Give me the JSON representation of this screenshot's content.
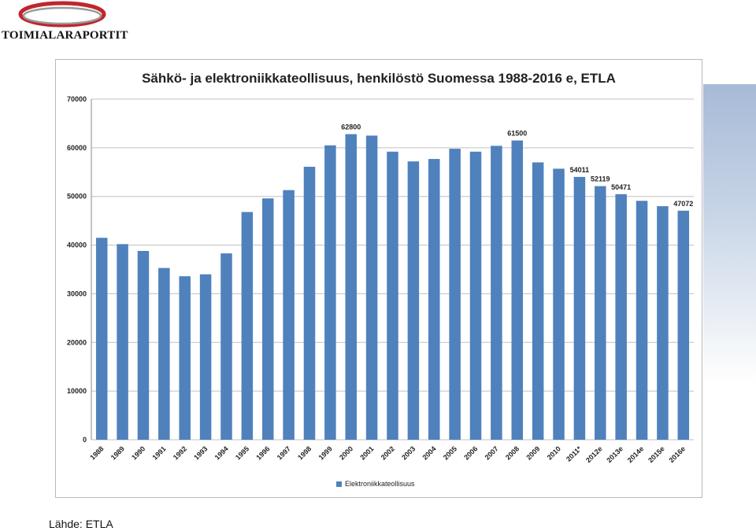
{
  "logo": {
    "text": "TOIMIALARAPORTIT"
  },
  "source": "Lähde: ETLA",
  "colors": {
    "bar": "#4f81bd",
    "grid": "#c0c0c0",
    "swoosh": "#c0262d"
  },
  "chart_data": {
    "type": "bar",
    "title": "Sähkö- ja elektroniikkateollisuus, henkilöstö Suomessa 1988-2016 e, ETLA",
    "categories": [
      "1988",
      "1989",
      "1990",
      "1991",
      "1992",
      "1993",
      "1994",
      "1995",
      "1996",
      "1997",
      "1998",
      "1999",
      "2000",
      "2001",
      "2002",
      "2003",
      "2004",
      "2005",
      "2006",
      "2007",
      "2008",
      "2009",
      "2010",
      "2011*",
      "2012e",
      "2013e",
      "2014e",
      "2015e",
      "2016e"
    ],
    "series": [
      {
        "name": "Elektroniikkateollisuus",
        "values": [
          41500,
          40200,
          38800,
          35300,
          33600,
          34000,
          38300,
          46800,
          49600,
          51300,
          56100,
          60500,
          62800,
          62500,
          59200,
          57200,
          57700,
          59800,
          59200,
          60400,
          61500,
          57000,
          55700,
          54011,
          52119,
          50471,
          49100,
          48000,
          47072
        ]
      }
    ],
    "data_labels": {
      "2000": "62800",
      "2008": "61500",
      "2011*": "54011",
      "2012e": "52119",
      "2013e": "50471",
      "2016e": "47072"
    },
    "yticks": [
      "0",
      "10000",
      "20000",
      "30000",
      "40000",
      "50000",
      "60000",
      "70000"
    ],
    "ylim": [
      0,
      70000
    ],
    "grid": true,
    "legend": "bottom"
  }
}
